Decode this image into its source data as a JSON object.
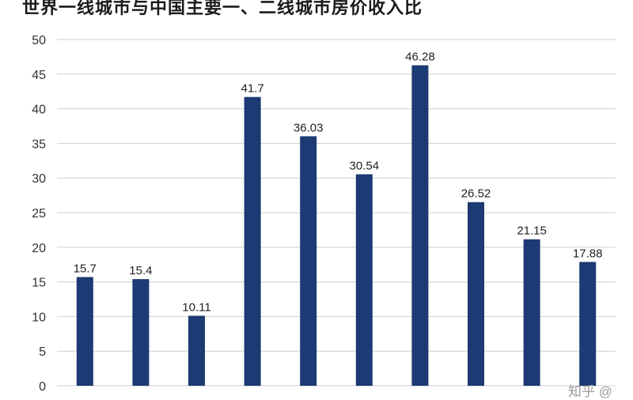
{
  "chart_data": {
    "type": "bar",
    "title": "世界一线城市与中国主要一、二线城市房价收入比",
    "xlabel": "",
    "ylabel": "",
    "ylim": [
      0,
      50
    ],
    "yticks": [
      0,
      5,
      10,
      15,
      20,
      25,
      30,
      35,
      40,
      45,
      50
    ],
    "grid": true,
    "legend": "none",
    "bar_color": "#1c3a73",
    "values": [
      15.7,
      15.4,
      10.11,
      41.7,
      36.03,
      30.54,
      46.28,
      26.52,
      21.15,
      17.88
    ],
    "value_labels": [
      "15.7",
      "15.4",
      "10.11",
      "41.7",
      "36.03",
      "30.54",
      "46.28",
      "26.52",
      "21.15",
      "17.88"
    ]
  },
  "watermark": "知乎 @"
}
